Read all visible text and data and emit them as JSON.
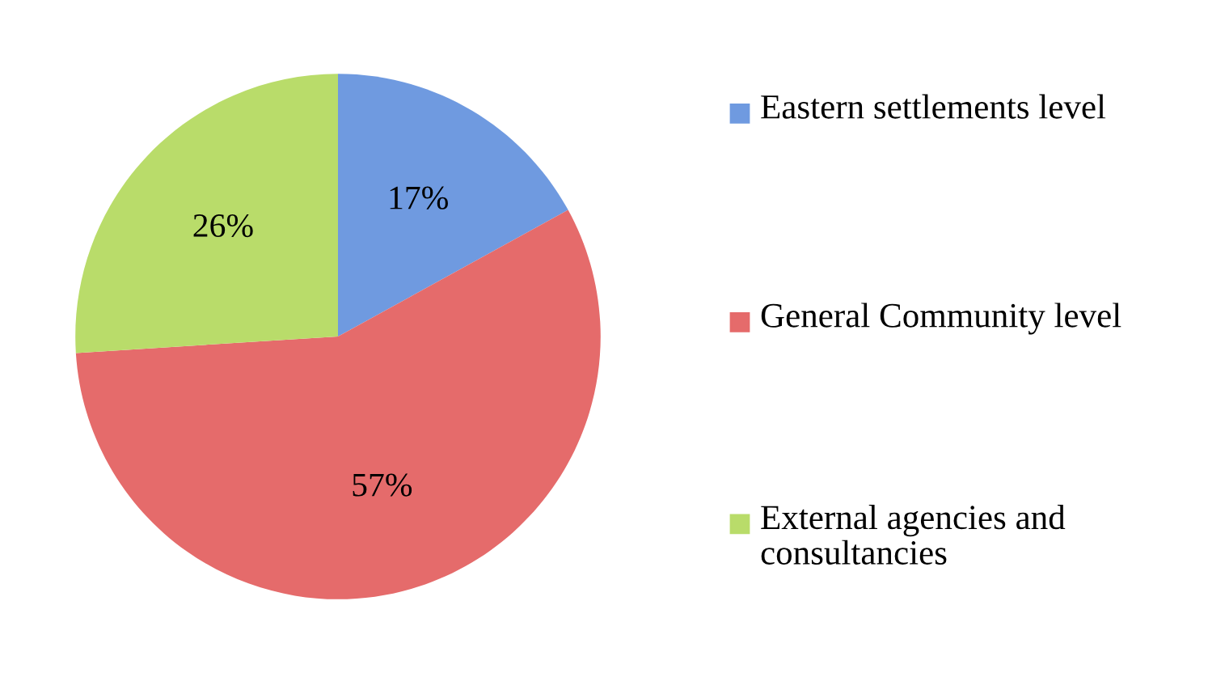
{
  "chart_data": {
    "type": "pie",
    "categories": [
      "Eastern settlements level",
      "General Community level",
      "External agencies and consultancies"
    ],
    "values": [
      17,
      57,
      26
    ],
    "colors": [
      "#6f9ae0",
      "#e56b6b",
      "#b9dc6a"
    ],
    "value_labels": [
      "17%",
      "57%",
      "26%"
    ],
    "legend": "right"
  }
}
